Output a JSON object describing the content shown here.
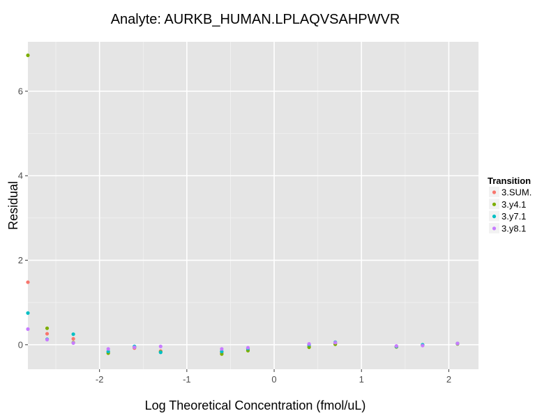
{
  "chart_data": {
    "type": "scatter",
    "title": "Analyte: AURKB_HUMAN.LPLAQVSAHPWVR",
    "xlabel": "Log Theoretical Concentration (fmol/uL)",
    "ylabel": "Residual",
    "xlim": [
      -2.82,
      2.34
    ],
    "ylim": [
      -0.58,
      7.17
    ],
    "x_ticks": [
      -2,
      -1,
      0,
      1,
      2
    ],
    "y_ticks": [
      0,
      2,
      4,
      6
    ],
    "x_tick_labels": [
      "-2",
      "-1",
      "0",
      "1",
      "2"
    ],
    "y_tick_labels": [
      "0",
      "2",
      "4",
      "6"
    ],
    "grid": true,
    "background": "#e5e5e5",
    "legend": {
      "title": "Transition",
      "placement": "right"
    },
    "series": [
      {
        "name": "3.SUM.",
        "color": "#f8766d",
        "points": [
          [
            -2.82,
            1.48
          ],
          [
            -2.6,
            0.26
          ],
          [
            -2.3,
            0.14
          ],
          [
            -1.9,
            -0.17
          ],
          [
            -1.6,
            -0.08
          ],
          [
            -1.3,
            -0.15
          ],
          [
            -0.6,
            -0.18
          ],
          [
            -0.3,
            -0.13
          ],
          [
            0.4,
            -0.04
          ],
          [
            0.7,
            0.02
          ],
          [
            1.4,
            -0.05
          ],
          [
            1.7,
            -0.01
          ],
          [
            2.1,
            0.03
          ]
        ]
      },
      {
        "name": "3.y4.1",
        "color": "#7cae00",
        "points": [
          [
            -2.82,
            6.85
          ],
          [
            -2.6,
            0.39
          ],
          [
            -2.3,
            0.05
          ],
          [
            -1.9,
            -0.2
          ],
          [
            -1.6,
            -0.06
          ],
          [
            -1.3,
            -0.17
          ],
          [
            -0.6,
            -0.22
          ],
          [
            -0.3,
            -0.14
          ],
          [
            0.4,
            -0.06
          ],
          [
            0.7,
            0.01
          ],
          [
            1.4,
            -0.05
          ],
          [
            1.7,
            -0.01
          ],
          [
            2.1,
            0.02
          ]
        ]
      },
      {
        "name": "3.y7.1",
        "color": "#00bfc4",
        "points": [
          [
            -2.82,
            0.75
          ],
          [
            -2.6,
            0.13
          ],
          [
            -2.3,
            0.25
          ],
          [
            -1.9,
            -0.16
          ],
          [
            -1.6,
            -0.04
          ],
          [
            -1.3,
            -0.18
          ],
          [
            -0.6,
            -0.16
          ],
          [
            -0.3,
            -0.09
          ],
          [
            0.4,
            0.0
          ],
          [
            0.7,
            0.06
          ],
          [
            1.4,
            -0.04
          ],
          [
            1.7,
            0.0
          ],
          [
            2.1,
            0.03
          ]
        ]
      },
      {
        "name": "3.y8.1",
        "color": "#c77cff",
        "points": [
          [
            -2.82,
            0.37
          ],
          [
            -2.6,
            0.12
          ],
          [
            -2.3,
            0.04
          ],
          [
            -1.9,
            -0.1
          ],
          [
            -1.6,
            -0.06
          ],
          [
            -1.3,
            -0.04
          ],
          [
            -0.6,
            -0.1
          ],
          [
            -0.3,
            -0.07
          ],
          [
            0.4,
            0.02
          ],
          [
            0.7,
            0.05
          ],
          [
            1.4,
            -0.03
          ],
          [
            1.7,
            -0.02
          ],
          [
            2.1,
            0.03
          ]
        ]
      }
    ]
  }
}
